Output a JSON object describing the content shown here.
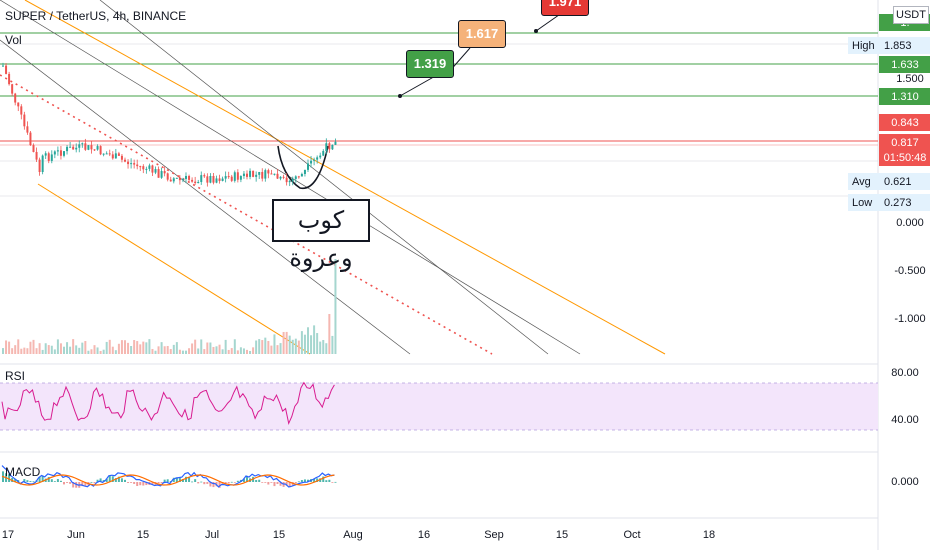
{
  "header": {
    "title": "SUPER / TetherUS, 4h, BINANCE",
    "volume_label": "Vol",
    "currency": "USDT"
  },
  "annotation": {
    "text": "كوب وعروة"
  },
  "targets": [
    {
      "label": "1.319",
      "color": "#43a047"
    },
    {
      "label": "1.617",
      "color": "#f5b27a"
    },
    {
      "label": "1.971",
      "color": "#e53935"
    }
  ],
  "price_axis": {
    "ticks": [
      "1.500",
      "0.000",
      "-0.500",
      "-1.000"
    ],
    "badges": [
      {
        "label": "1.",
        "color": "#43a047",
        "kind": "top"
      },
      {
        "label": "1.633",
        "color": "#43a047",
        "kind": "level"
      },
      {
        "label": "1.310",
        "color": "#43a047",
        "kind": "level"
      },
      {
        "label": "0.843",
        "color": "#ef5350",
        "kind": "level"
      },
      {
        "label": "0.817",
        "sublabel": "01:50:48",
        "color": "#ef5350",
        "kind": "current"
      }
    ],
    "stats": [
      {
        "name": "High",
        "value": "1.853"
      },
      {
        "name": "Avg",
        "value": "0.621"
      },
      {
        "name": "Low",
        "value": "0.273"
      }
    ]
  },
  "rsi": {
    "label": "RSI",
    "ticks": [
      "80.00",
      "40.00"
    ]
  },
  "macd": {
    "label": "MACD",
    "ticks": [
      "0.000"
    ]
  },
  "time_axis": {
    "ticks": [
      "17",
      "Jun",
      "15",
      "Jul",
      "15",
      "Aug",
      "16",
      "Sep",
      "15",
      "Oct",
      "18"
    ]
  },
  "colors": {
    "up": "#26a69a",
    "down": "#ef5350",
    "channel": "#ff9800",
    "level_green": "#43a047",
    "level_red": "#ef5350",
    "rsi_line": "#d81b90",
    "rsi_band": "#f3e5fb",
    "macd_line": "#2962ff",
    "signal_line": "#ff6d00"
  },
  "chart_data": {
    "type": "candlestick",
    "symbol": "SUPER / TetherUS",
    "interval": "4h",
    "exchange": "BINANCE",
    "levels": [
      1.633,
      1.31,
      0.843
    ],
    "current_price": 0.817,
    "high": 1.853,
    "avg": 0.621,
    "low": 0.273,
    "targets": [
      1.319,
      1.617,
      1.971
    ],
    "rsi_bounds": [
      40,
      80
    ]
  }
}
